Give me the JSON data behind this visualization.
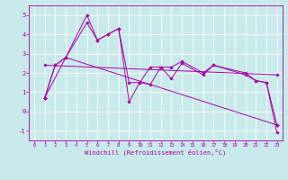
{
  "title": "",
  "xlabel": "Windchill (Refroidissement éolien,°C)",
  "bg_color": "#c8eaea",
  "line_color": "#aa00aa",
  "grid_color": "#ffffff",
  "xlim": [
    -0.5,
    23.5
  ],
  "ylim": [
    -1.5,
    5.5
  ],
  "yticks": [
    -1,
    0,
    1,
    2,
    3,
    4,
    5
  ],
  "xticks": [
    0,
    1,
    2,
    3,
    4,
    5,
    6,
    7,
    8,
    9,
    10,
    11,
    12,
    13,
    14,
    15,
    16,
    17,
    18,
    19,
    20,
    21,
    22,
    23
  ],
  "lines": [
    {
      "x": [
        1,
        2,
        3,
        5,
        6,
        7,
        8,
        9,
        10,
        11,
        12,
        13,
        14,
        16,
        17,
        20,
        21,
        22,
        23
      ],
      "y": [
        0.7,
        2.4,
        2.8,
        5.0,
        3.7,
        4.0,
        4.3,
        0.5,
        1.5,
        1.4,
        2.3,
        1.7,
        2.5,
        1.9,
        2.4,
        1.9,
        1.6,
        1.5,
        -1.1
      ]
    },
    {
      "x": [
        1,
        2,
        3,
        5,
        6,
        7,
        8,
        9,
        10,
        11,
        12,
        13,
        14,
        16,
        17,
        20,
        21,
        22,
        23
      ],
      "y": [
        0.7,
        2.4,
        2.8,
        4.6,
        3.7,
        4.0,
        4.3,
        1.5,
        1.5,
        2.3,
        2.3,
        2.3,
        2.6,
        2.0,
        2.4,
        2.0,
        1.6,
        1.5,
        -0.7
      ]
    },
    {
      "x": [
        1,
        3,
        23
      ],
      "y": [
        0.7,
        2.8,
        -0.7
      ]
    },
    {
      "x": [
        1,
        23
      ],
      "y": [
        2.4,
        1.9
      ]
    }
  ]
}
